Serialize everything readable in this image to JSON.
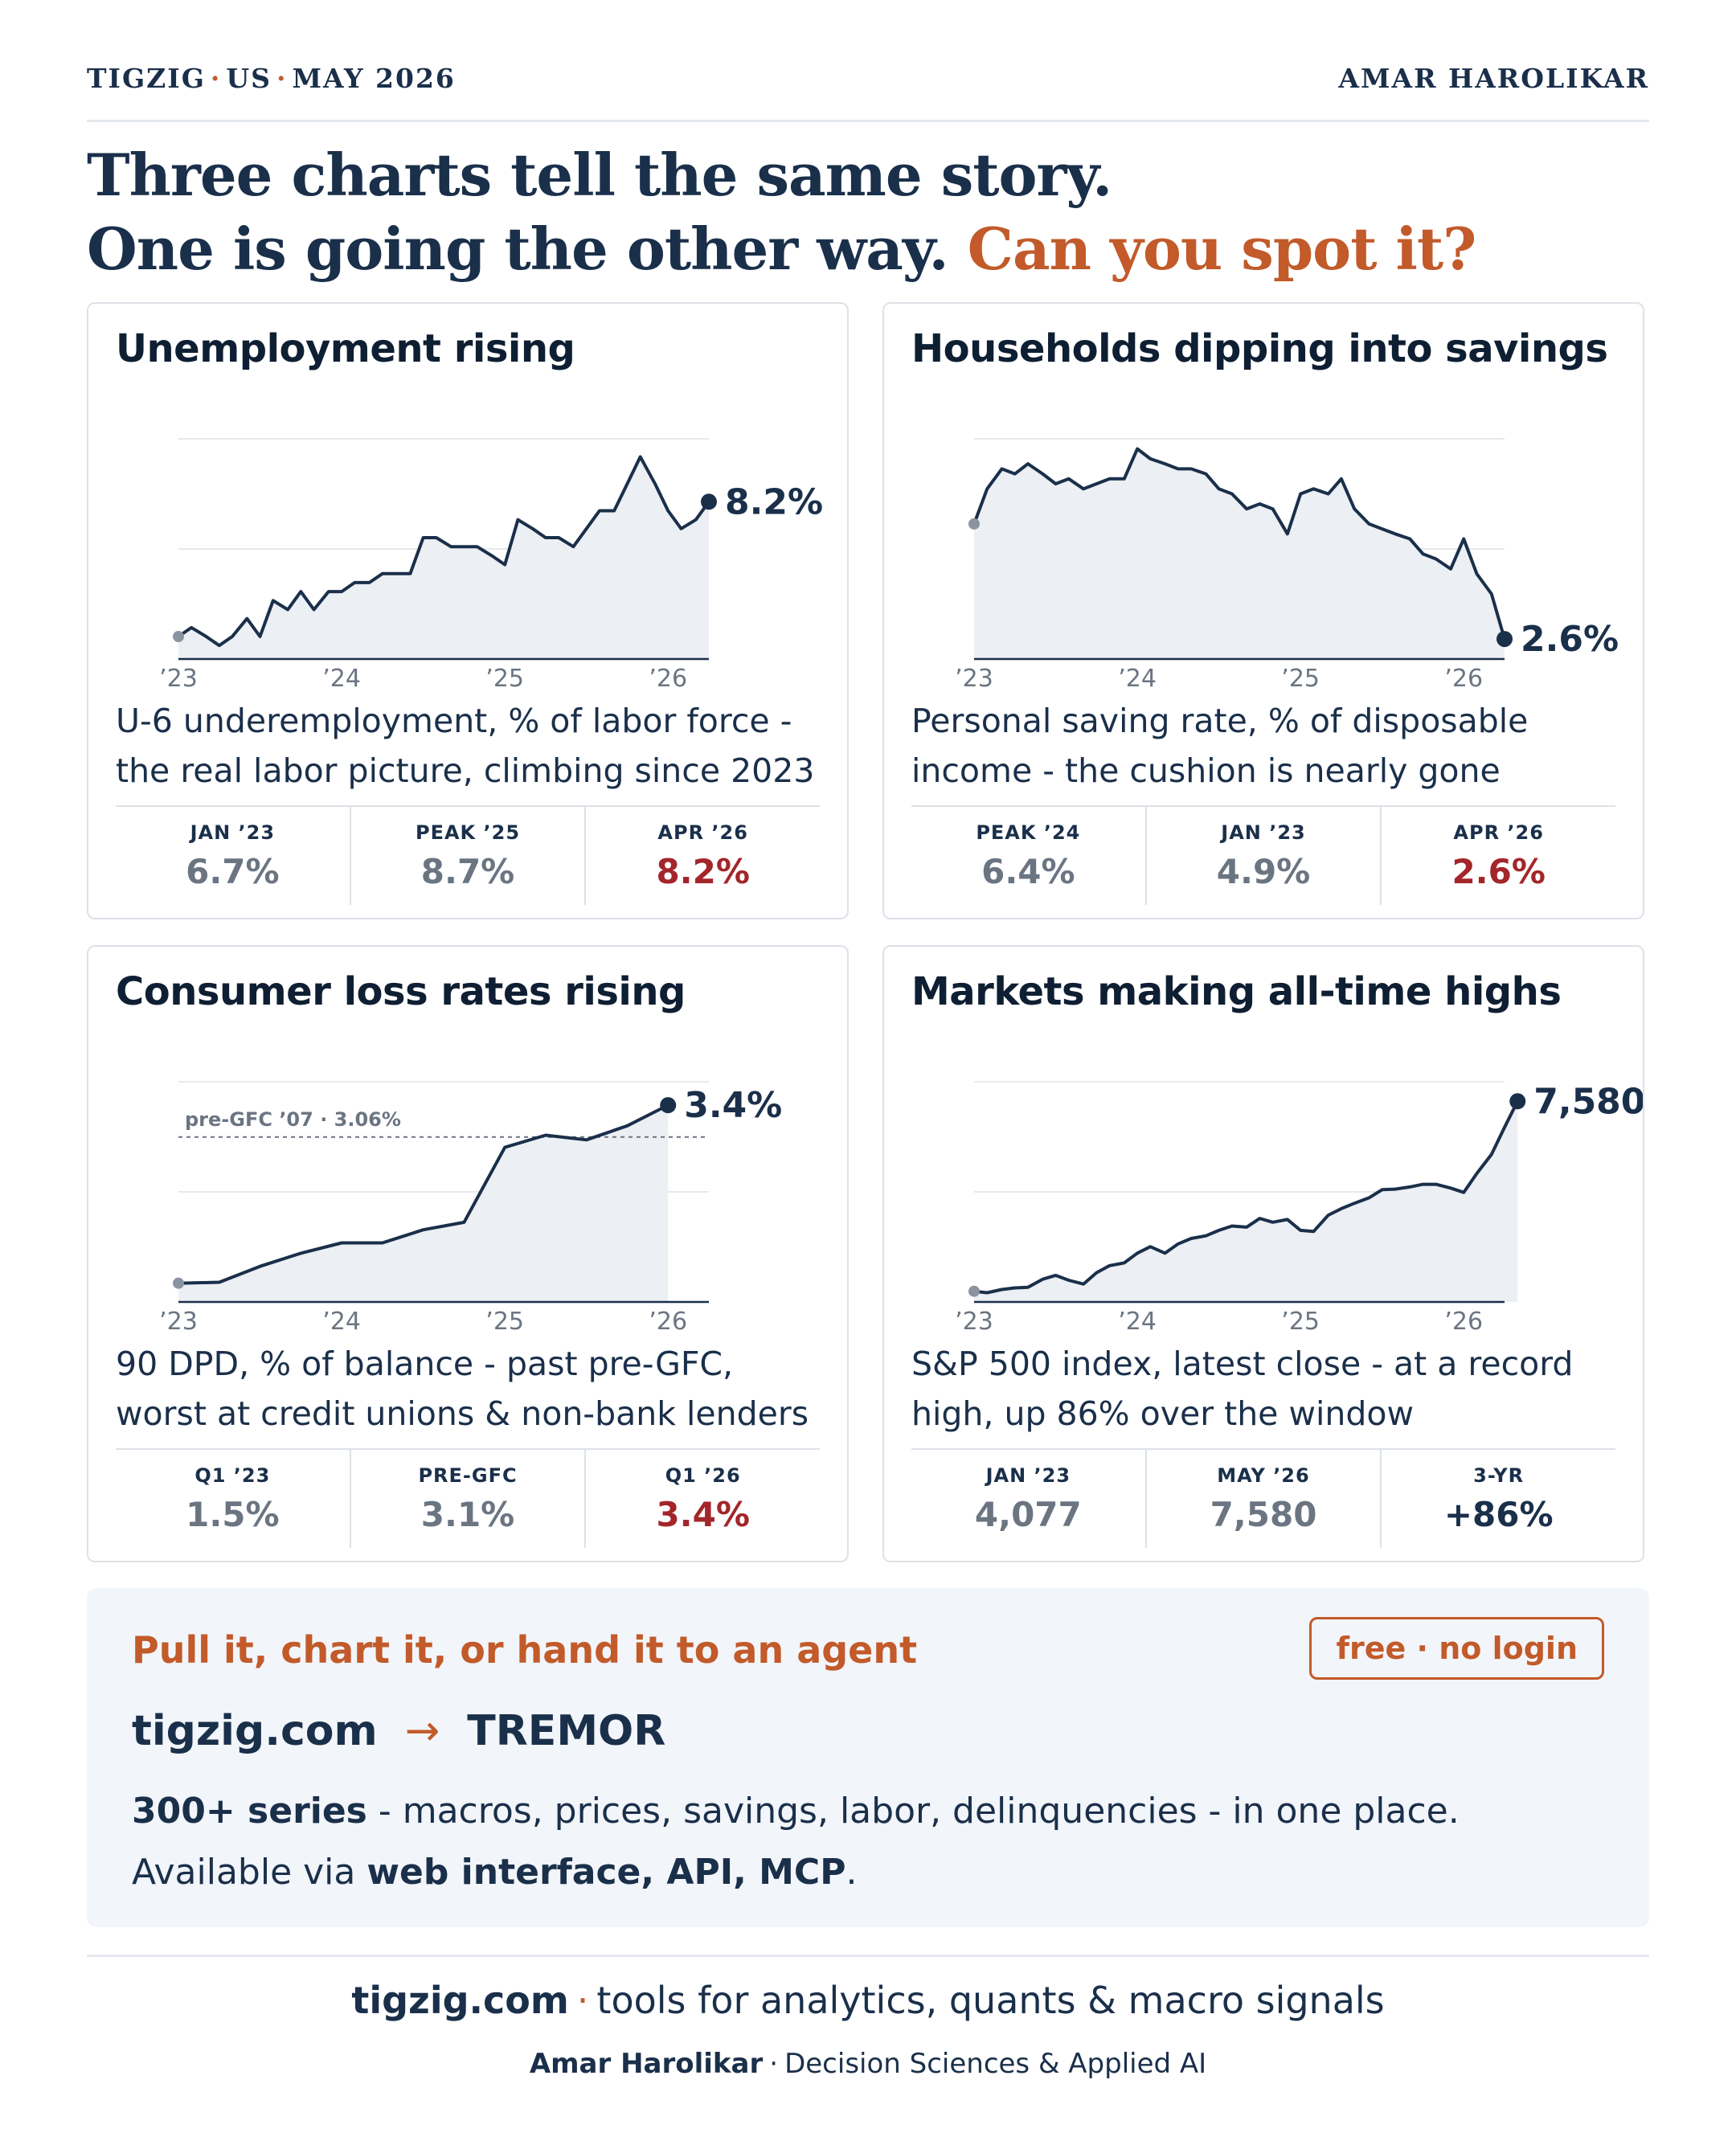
{
  "header": {
    "brand_parts": [
      "TIGZIG",
      "US",
      "MAY 2026"
    ],
    "sep": "·",
    "author": "AMAR HAROLIKAR"
  },
  "headline": {
    "line1": "Three charts tell the same story.",
    "line2": "One is going the other way.",
    "accent": "Can you spot it?"
  },
  "colors": {
    "navy": "#1a2f4a",
    "orange": "#c25a2a",
    "red": "#a3262a",
    "muted": "#6b7582",
    "fill": "#eceff3",
    "grid": "#e6e9ee",
    "start_dot": "#8a94a0"
  },
  "cards": [
    {
      "title": "Unemployment rising",
      "desc": "U-6 underemployment, % of labor force - the real labor picture, climbing since 2023",
      "end_label": "8.2%",
      "stats": [
        {
          "label": "JAN ’23",
          "value": "6.7%",
          "tone": "muted"
        },
        {
          "label": "PEAK ’25",
          "value": "8.7%",
          "tone": "muted"
        },
        {
          "label": "APR ’26",
          "value": "8.2%",
          "tone": "red"
        }
      ]
    },
    {
      "title": "Households dipping into savings",
      "desc": "Personal saving rate, % of disposable income - the cushion is nearly gone",
      "end_label": "2.6%",
      "stats": [
        {
          "label": "PEAK ’24",
          "value": "6.4%",
          "tone": "muted"
        },
        {
          "label": "JAN ’23",
          "value": "4.9%",
          "tone": "muted"
        },
        {
          "label": "APR ’26",
          "value": "2.6%",
          "tone": "red"
        }
      ]
    },
    {
      "title": "Consumer loss rates rising",
      "desc": "90 DPD, % of balance - past pre-GFC, worst at credit unions & non-bank lenders",
      "end_label": "3.4%",
      "ref_label": "pre-GFC ’07 · 3.06%",
      "stats": [
        {
          "label": "Q1 ’23",
          "value": "1.5%",
          "tone": "muted"
        },
        {
          "label": "PRE-GFC",
          "value": "3.1%",
          "tone": "muted"
        },
        {
          "label": "Q1 ’26",
          "value": "3.4%",
          "tone": "red"
        }
      ]
    },
    {
      "title": "Markets making all-time highs",
      "desc": "S&P 500 index, latest close - at a record high, up 86% over the window",
      "end_label": "7,580",
      "stats": [
        {
          "label": "JAN ’23",
          "value": "4,077",
          "tone": "muted"
        },
        {
          "label": "MAY ’26",
          "value": "7,580",
          "tone": "muted"
        },
        {
          "label": "3-YR",
          "value": "+86%",
          "tone": "dark"
        }
      ]
    }
  ],
  "chart_data": [
    {
      "type": "area",
      "title": "Unemployment rising",
      "x_ticks": [
        "’23",
        "’24",
        "’25",
        "’26"
      ],
      "x": [
        2023.0,
        2023.08,
        2023.17,
        2023.25,
        2023.33,
        2023.42,
        2023.5,
        2023.58,
        2023.67,
        2023.75,
        2023.83,
        2023.92,
        2024.0,
        2024.08,
        2024.17,
        2024.25,
        2024.33,
        2024.42,
        2024.5,
        2024.58,
        2024.67,
        2024.75,
        2024.83,
        2024.92,
        2025.0,
        2025.08,
        2025.17,
        2025.25,
        2025.33,
        2025.42,
        2025.5,
        2025.58,
        2025.67,
        2025.75,
        2025.83,
        2025.92,
        2026.0,
        2026.08,
        2026.17,
        2026.25
      ],
      "y": [
        6.7,
        6.8,
        6.7,
        6.6,
        6.7,
        6.9,
        6.7,
        7.1,
        7.0,
        7.2,
        7.0,
        7.2,
        7.2,
        7.3,
        7.3,
        7.4,
        7.4,
        7.4,
        7.8,
        7.8,
        7.7,
        7.7,
        7.7,
        7.6,
        7.5,
        8.0,
        7.9,
        7.8,
        7.8,
        7.7,
        7.9,
        8.1,
        8.1,
        8.4,
        8.7,
        8.4,
        8.1,
        7.9,
        8.0,
        8.2
      ],
      "ylim": [
        6.45,
        8.9
      ]
    },
    {
      "type": "area",
      "title": "Households dipping into savings",
      "x_ticks": [
        "’23",
        "’24",
        "’25",
        "’26"
      ],
      "x": [
        2023.0,
        2023.08,
        2023.17,
        2023.25,
        2023.33,
        2023.42,
        2023.5,
        2023.58,
        2023.67,
        2023.75,
        2023.83,
        2023.92,
        2024.0,
        2024.08,
        2024.17,
        2024.25,
        2024.33,
        2024.42,
        2024.5,
        2024.58,
        2024.67,
        2024.75,
        2024.83,
        2024.92,
        2025.0,
        2025.08,
        2025.17,
        2025.25,
        2025.33,
        2025.42,
        2025.5,
        2025.58,
        2025.67,
        2025.75,
        2025.83,
        2025.92,
        2026.0,
        2026.08,
        2026.17,
        2026.25
      ],
      "y": [
        4.9,
        5.6,
        6.0,
        5.9,
        6.1,
        5.9,
        5.7,
        5.8,
        5.6,
        5.7,
        5.8,
        5.8,
        6.4,
        6.2,
        6.1,
        6.0,
        6.0,
        5.9,
        5.6,
        5.5,
        5.2,
        5.3,
        5.2,
        4.7,
        5.5,
        5.6,
        5.5,
        5.8,
        5.2,
        4.9,
        4.8,
        4.7,
        4.6,
        4.3,
        4.2,
        4.0,
        4.6,
        3.9,
        3.5,
        2.6
      ],
      "ylim": [
        2.2,
        6.6
      ]
    },
    {
      "type": "area",
      "title": "Consumer loss rates rising",
      "x_ticks": [
        "’23",
        "’24",
        "’25",
        "’26"
      ],
      "x": [
        2023.0,
        2023.25,
        2023.5,
        2023.75,
        2024.0,
        2024.25,
        2024.5,
        2024.75,
        2025.0,
        2025.25,
        2025.5,
        2025.75,
        2026.0
      ],
      "y": [
        1.5,
        1.51,
        1.68,
        1.82,
        1.93,
        1.93,
        2.07,
        2.15,
        2.95,
        3.08,
        3.03,
        3.18,
        3.4
      ],
      "reference": {
        "label": "pre-GFC ’07 · 3.06%",
        "value": 3.06
      },
      "ylim": [
        1.3,
        3.65
      ]
    },
    {
      "type": "area",
      "title": "Markets making all-time highs",
      "x_ticks": [
        "’23",
        "’24",
        "’25",
        "’26"
      ],
      "x": [
        2023.0,
        2023.08,
        2023.17,
        2023.25,
        2023.33,
        2023.42,
        2023.5,
        2023.58,
        2023.67,
        2023.75,
        2023.83,
        2023.92,
        2024.0,
        2024.08,
        2024.17,
        2024.25,
        2024.33,
        2024.42,
        2024.5,
        2024.58,
        2024.67,
        2024.75,
        2024.83,
        2024.92,
        2025.0,
        2025.08,
        2025.17,
        2025.25,
        2025.33,
        2025.42,
        2025.5,
        2025.58,
        2025.67,
        2025.75,
        2025.83,
        2025.92,
        2026.0,
        2026.08,
        2026.17,
        2026.25,
        2026.33
      ],
      "y": [
        4077,
        4050,
        4110,
        4140,
        4150,
        4300,
        4370,
        4280,
        4210,
        4420,
        4550,
        4600,
        4780,
        4900,
        4780,
        4950,
        5050,
        5100,
        5200,
        5280,
        5260,
        5420,
        5350,
        5400,
        5200,
        5180,
        5480,
        5600,
        5700,
        5800,
        5950,
        5960,
        6000,
        6050,
        6050,
        5980,
        5900,
        6250,
        6600,
        7100,
        7580
      ],
      "ylim": [
        3880,
        7940
      ]
    }
  ],
  "cta": {
    "head": "Pull it, chart it, or hand it to an agent",
    "badge": "free · no login",
    "route_from": "tigzig.com",
    "route_arrow": "→",
    "route_to": "TREMOR",
    "line1_bold": "300+ series",
    "line1_rest": " - macros, prices, savings, labor, delinquencies - in one place.",
    "line2_pre": "Available via ",
    "line2_bold": "web interface, API, MCP",
    "line2_post": "."
  },
  "footer": {
    "site": "tigzig.com",
    "sep": "·",
    "tagline": "tools for analytics, quants & macro signals",
    "name": "Amar Harolikar",
    "role": "Decision Sciences & Applied AI"
  }
}
